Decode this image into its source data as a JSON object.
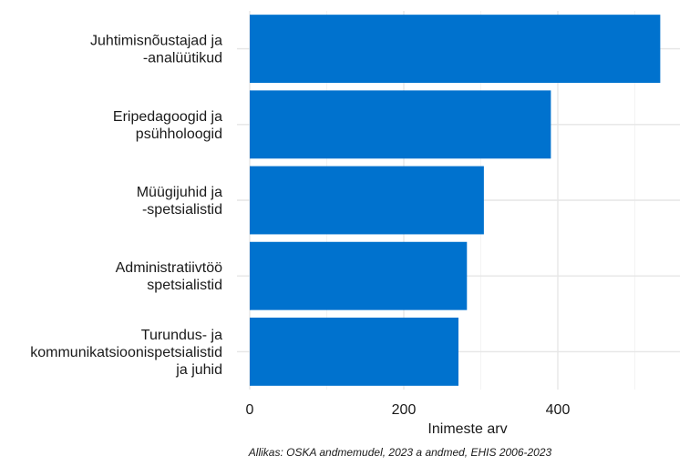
{
  "chart_data": {
    "type": "bar",
    "orientation": "horizontal",
    "categories": [
      [
        "Juhtimisnõustajad ja",
        "-analüütikud"
      ],
      [
        "Eripedagoogid ja",
        "psühholoogid"
      ],
      [
        "Müügijuhid ja",
        "-spetsialistid"
      ],
      [
        "Administratiivtöö",
        "spetsialistid"
      ],
      [
        "Turundus- ja",
        "kommunikatsioonispetsialistid",
        "ja juhid"
      ]
    ],
    "values": [
      533,
      391,
      304,
      282,
      271
    ],
    "xlabel": "Inimeste arv",
    "ylabel": "",
    "xlim": [
      0,
      560
    ],
    "xticks": [
      0,
      200,
      400
    ],
    "bar_color": "#0072ce",
    "grid": true,
    "caption": "Allikas: OSKA andmemudel, 2023 a andmed, EHIS 2006-2023"
  }
}
